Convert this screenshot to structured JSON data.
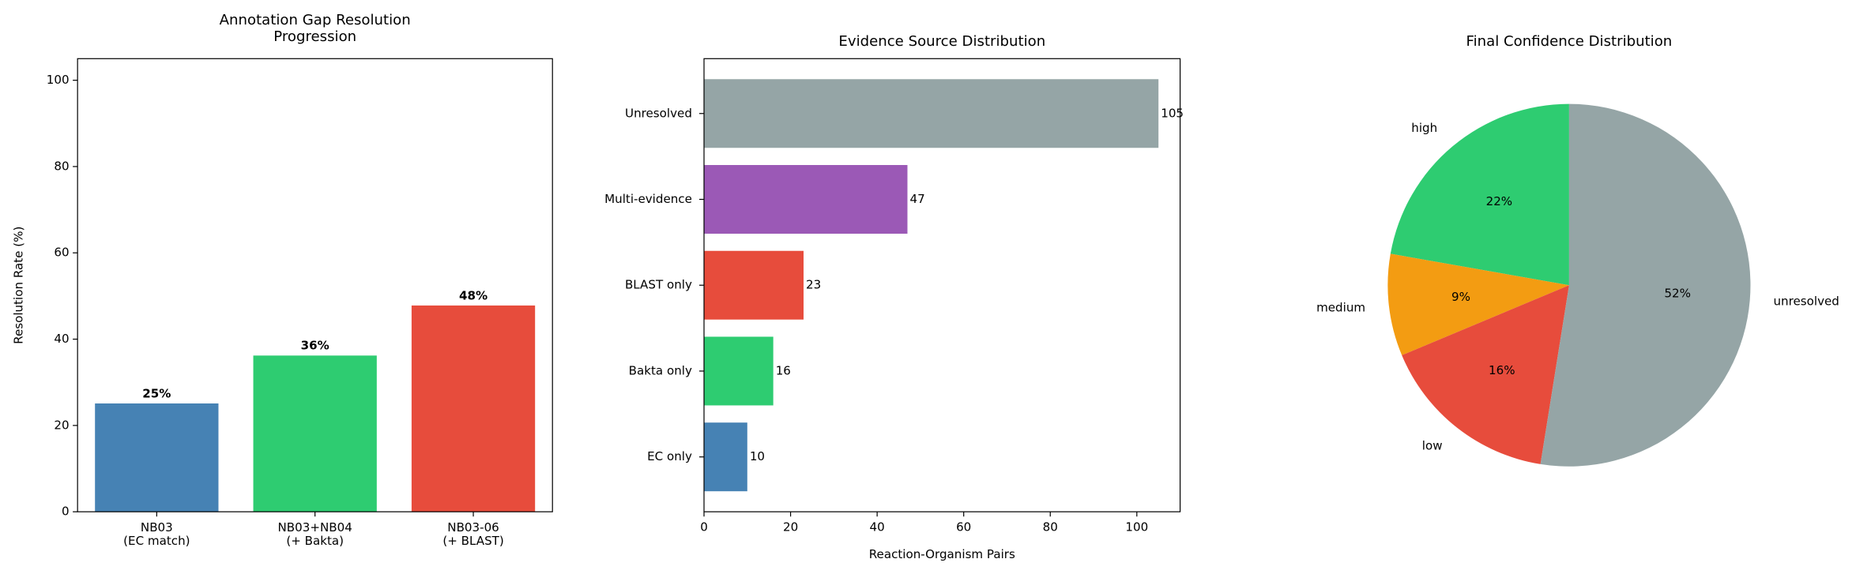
{
  "chart_data": [
    {
      "type": "bar",
      "title": "Annotation Gap Resolution\nProgression",
      "y_label": "Resolution Rate (%)",
      "categories": [
        "NB03\n(EC match)",
        "NB03+NB04\n(+ Bakta)",
        "NB03-06\n(+ BLAST)"
      ],
      "values": [
        25.1,
        36.2,
        47.8
      ],
      "value_labels": [
        "25%",
        "36%",
        "48%"
      ],
      "colors": [
        "#4682b4",
        "#2ecc71",
        "#e74c3c"
      ],
      "ylim": [
        0,
        105
      ],
      "yticks": [
        0,
        20,
        40,
        60,
        80,
        100
      ]
    },
    {
      "type": "barh",
      "title": "Evidence Source Distribution",
      "x_label": "Reaction-Organism Pairs",
      "categories": [
        "EC only",
        "Bakta only",
        "BLAST only",
        "Multi-evidence",
        "Unresolved"
      ],
      "values": [
        10,
        16,
        23,
        47,
        105
      ],
      "colors": [
        "#4682b4",
        "#2ecc71",
        "#e74c3c",
        "#9b59b6",
        "#95a5a6"
      ],
      "xlim": [
        0,
        110
      ],
      "xticks": [
        0,
        20,
        40,
        60,
        80,
        100
      ]
    },
    {
      "type": "pie",
      "title": "Final Confidence Distribution",
      "categories": [
        "high",
        "medium",
        "low",
        "unresolved"
      ],
      "values": [
        22,
        9,
        16,
        52
      ],
      "value_labels": [
        "22%",
        "9%",
        "16%",
        "52%"
      ],
      "colors": [
        "#2ecc71",
        "#f39c12",
        "#e74c3c",
        "#95a5a6"
      ]
    }
  ]
}
